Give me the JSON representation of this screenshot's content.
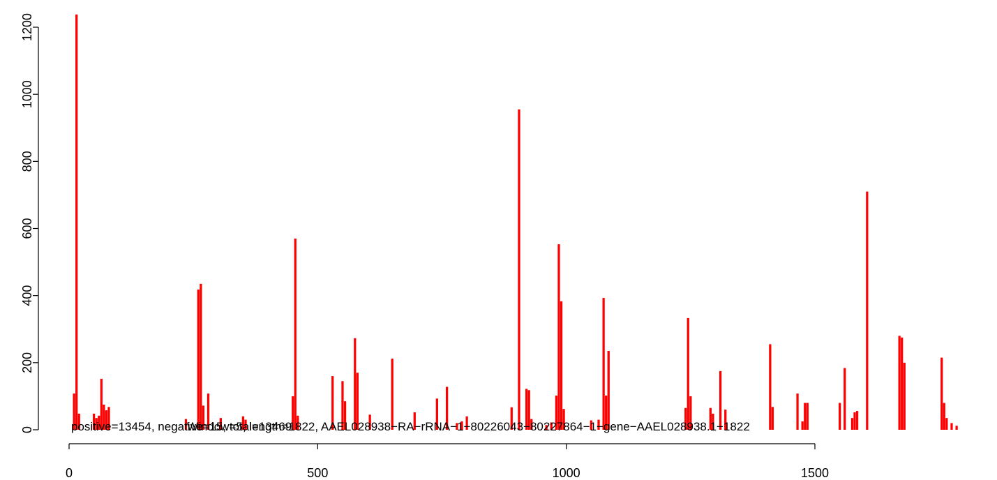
{
  "chart_data": {
    "type": "bar",
    "bar_color": "#ff0000",
    "xlim": [
      0,
      1822
    ],
    "ylim": [
      0,
      1240
    ],
    "x_ticks": [
      0,
      500,
      1000,
      1500
    ],
    "y_ticks": [
      0,
      200,
      400,
      600,
      800,
      1000,
      1200
    ],
    "annotation": "positive=13454, negative=15, total=13469",
    "overlap_text": "Window=5, length=1822, AAEL028938−RA−rRNA−1−80226043−80227864−1−gene−AAEL028938.1−1822",
    "bars": [
      {
        "x": 10,
        "y": 108
      },
      {
        "x": 15,
        "y": 1238
      },
      {
        "x": 20,
        "y": 48
      },
      {
        "x": 50,
        "y": 48
      },
      {
        "x": 55,
        "y": 35
      },
      {
        "x": 60,
        "y": 42
      },
      {
        "x": 65,
        "y": 152
      },
      {
        "x": 70,
        "y": 75
      },
      {
        "x": 75,
        "y": 58
      },
      {
        "x": 80,
        "y": 68
      },
      {
        "x": 235,
        "y": 32
      },
      {
        "x": 260,
        "y": 418
      },
      {
        "x": 265,
        "y": 435
      },
      {
        "x": 270,
        "y": 72
      },
      {
        "x": 280,
        "y": 108
      },
      {
        "x": 305,
        "y": 35
      },
      {
        "x": 350,
        "y": 40
      },
      {
        "x": 355,
        "y": 30
      },
      {
        "x": 450,
        "y": 100
      },
      {
        "x": 455,
        "y": 570
      },
      {
        "x": 460,
        "y": 42
      },
      {
        "x": 530,
        "y": 160
      },
      {
        "x": 550,
        "y": 145
      },
      {
        "x": 555,
        "y": 85
      },
      {
        "x": 575,
        "y": 273
      },
      {
        "x": 580,
        "y": 170
      },
      {
        "x": 605,
        "y": 45
      },
      {
        "x": 650,
        "y": 212
      },
      {
        "x": 695,
        "y": 52
      },
      {
        "x": 740,
        "y": 93
      },
      {
        "x": 760,
        "y": 128
      },
      {
        "x": 780,
        "y": 20
      },
      {
        "x": 790,
        "y": 25
      },
      {
        "x": 800,
        "y": 40
      },
      {
        "x": 890,
        "y": 67
      },
      {
        "x": 905,
        "y": 955
      },
      {
        "x": 920,
        "y": 122
      },
      {
        "x": 925,
        "y": 118
      },
      {
        "x": 930,
        "y": 32
      },
      {
        "x": 960,
        "y": 14
      },
      {
        "x": 970,
        "y": 22
      },
      {
        "x": 980,
        "y": 102
      },
      {
        "x": 985,
        "y": 553
      },
      {
        "x": 990,
        "y": 383
      },
      {
        "x": 995,
        "y": 62
      },
      {
        "x": 1050,
        "y": 28
      },
      {
        "x": 1065,
        "y": 30
      },
      {
        "x": 1075,
        "y": 393
      },
      {
        "x": 1080,
        "y": 102
      },
      {
        "x": 1085,
        "y": 235
      },
      {
        "x": 1240,
        "y": 65
      },
      {
        "x": 1245,
        "y": 333
      },
      {
        "x": 1250,
        "y": 100
      },
      {
        "x": 1290,
        "y": 65
      },
      {
        "x": 1295,
        "y": 48
      },
      {
        "x": 1310,
        "y": 175
      },
      {
        "x": 1320,
        "y": 60
      },
      {
        "x": 1410,
        "y": 255
      },
      {
        "x": 1415,
        "y": 68
      },
      {
        "x": 1465,
        "y": 108
      },
      {
        "x": 1475,
        "y": 25
      },
      {
        "x": 1480,
        "y": 80
      },
      {
        "x": 1485,
        "y": 80
      },
      {
        "x": 1550,
        "y": 80
      },
      {
        "x": 1560,
        "y": 184
      },
      {
        "x": 1575,
        "y": 35
      },
      {
        "x": 1580,
        "y": 52
      },
      {
        "x": 1585,
        "y": 56
      },
      {
        "x": 1605,
        "y": 710
      },
      {
        "x": 1670,
        "y": 280
      },
      {
        "x": 1675,
        "y": 275
      },
      {
        "x": 1680,
        "y": 200
      },
      {
        "x": 1755,
        "y": 215
      },
      {
        "x": 1760,
        "y": 80
      },
      {
        "x": 1765,
        "y": 35
      },
      {
        "x": 1775,
        "y": 20
      },
      {
        "x": 1785,
        "y": 12
      }
    ]
  }
}
